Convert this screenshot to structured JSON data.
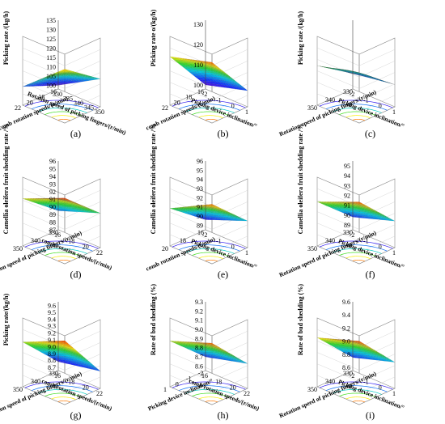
{
  "figure": {
    "panels": [
      {
        "caption": "(a)"
      },
      {
        "caption": "(b)"
      },
      {
        "caption": "(c)"
      },
      {
        "caption": "(d)"
      },
      {
        "caption": "(e)"
      },
      {
        "caption": "(f)"
      },
      {
        "caption": "(g)"
      },
      {
        "caption": "(h)"
      },
      {
        "caption": "(i)"
      }
    ]
  },
  "chart_data": [
    {
      "type": "surface3d",
      "caption": "(a)",
      "zlabel": "Picking rate /(kg/h)",
      "xlabel": "Rotation speed of picking fingers/(r/min)",
      "ylabel": "comb rotation speeds/(r/min)",
      "xticks": [
        "330",
        "335",
        "340",
        "345",
        "350"
      ],
      "yticks": [
        "16",
        "18",
        "20",
        "22"
      ],
      "zticks": [
        "100",
        "105",
        "110",
        "115",
        "120",
        "125",
        "130",
        "135"
      ],
      "zlim": [
        98,
        135
      ],
      "corners": {
        "z00": 100,
        "z10": 113,
        "z01": 108,
        "z11": 127
      },
      "colormap": "rainbow",
      "grid": true,
      "contour_base": true
    },
    {
      "type": "surface3d",
      "caption": "(b)",
      "zlabel": "Picking rate o/(kg/h)",
      "xlabel": "Picking device inclination/°",
      "ylabel": "comb rotation speeds/(r/min)",
      "xticks": [
        "-2",
        "-1",
        "0",
        "1"
      ],
      "yticks": [
        "16",
        "18",
        "20",
        "22"
      ],
      "zticks": [
        "100",
        "110",
        "120",
        "130"
      ],
      "zlim": [
        98,
        132
      ],
      "corners": {
        "z00": 100,
        "z10": 106,
        "z01": 122,
        "z11": 128
      },
      "colormap": "rainbow",
      "grid": true,
      "contour_base": true
    },
    {
      "type": "surface3d",
      "caption": "(c)",
      "zlabel": "Picking rate /(kg/h)",
      "xlabel": "Picking device inclination/°",
      "ylabel": "Rotation speed of picking fingers/(r/min)",
      "xticks": [
        "-2",
        "-1",
        "0",
        "1"
      ],
      "yticks": [
        "330",
        "340",
        "350"
      ],
      "zticks": [],
      "zlim": [
        95,
        135
      ],
      "corners": {
        "z00": 104,
        "z10": 108,
        "z01": 118,
        "z11": 123
      },
      "colormap": "rainbow",
      "grid": true,
      "contour_base": true
    },
    {
      "type": "surface3d",
      "caption": "(d)",
      "zlabel": "Camellia oleifera fruit shedding rate /%",
      "xlabel": "comb rotation speeds/(r/min)",
      "ylabel": "Rotation speed of picking fingers/(r/min)",
      "xticks": [
        "16",
        "18",
        "20",
        "22"
      ],
      "yticks": [
        "330",
        "340",
        "350"
      ],
      "zticks": [
        "87",
        "88",
        "89",
        "90",
        "91",
        "92",
        "93",
        "94",
        "95",
        "96"
      ],
      "zlim": [
        87,
        96
      ],
      "corners": {
        "z00": 89.5,
        "z10": 91.5,
        "z01": 93.2,
        "z11": 95.6
      },
      "colormap": "rainbow",
      "grid": true,
      "contour_base": true
    },
    {
      "type": "surface3d",
      "caption": "(e)",
      "zlabel": "Camellia oleifera fruit shedding rate /%",
      "xlabel": "Picking device inclination/°",
      "ylabel": "comb rotation speeds/(r/min)",
      "xticks": [
        "-2",
        "-1",
        "0",
        "1"
      ],
      "yticks": [
        "16",
        "18",
        "20"
      ],
      "zticks": [
        "89",
        "90",
        "91",
        "92",
        "93",
        "94",
        "95",
        "96"
      ],
      "zlim": [
        88.5,
        96
      ],
      "corners": {
        "z00": 89.6,
        "z10": 91.4,
        "z01": 92.6,
        "z11": 95.0
      },
      "colormap": "rainbow",
      "grid": true,
      "contour_base": true
    },
    {
      "type": "surface3d",
      "caption": "(f)",
      "zlabel": "Camellia oleifera fruit shedding rate /%",
      "xlabel": "Picking device inclination/°",
      "ylabel": "Rotation speed of picking fingers/(r/min)",
      "xticks": [
        "-2",
        "-1",
        "0",
        "1"
      ],
      "yticks": [
        "330",
        "340",
        "350"
      ],
      "zticks": [
        "89",
        "90",
        "91",
        "92",
        "93",
        "94",
        "95"
      ],
      "zlim": [
        88.5,
        95.5
      ],
      "corners": {
        "z00": 89.8,
        "z10": 91.2,
        "z01": 93.0,
        "z11": 94.8
      },
      "colormap": "rainbow",
      "grid": true,
      "contour_base": true
    },
    {
      "type": "surface3d",
      "caption": "(g)",
      "zlabel": "Picking rate/(kg/h)",
      "xlabel": "comb rotation speeds/(r/min)",
      "ylabel": "Rotation speed of picking fingers/(r/min)",
      "xticks": [
        "16",
        "18",
        "20",
        "22"
      ],
      "yticks": [
        "330",
        "340",
        "350"
      ],
      "zticks": [
        "8.7",
        "8.8",
        "8.9",
        "9.0",
        "9.1",
        "9.2",
        "9.3",
        "9.4",
        "9.5",
        "9.6"
      ],
      "zlim": [
        8.65,
        9.65
      ],
      "corners": {
        "z00": 8.78,
        "z10": 8.9,
        "z01": 9.3,
        "z11": 9.58
      },
      "colormap": "rainbow",
      "grid": true,
      "contour_base": true
    },
    {
      "type": "surface3d",
      "caption": "(h)",
      "zlabel": "Rate of bud shedding (%)",
      "xlabel": "comb rotation speeds/(r/min)",
      "ylabel": "Picking device inclination/°",
      "xticks": [
        "16",
        "18",
        "20",
        "22"
      ],
      "yticks": [
        "-2",
        "-1",
        "0",
        "1"
      ],
      "zticks": [
        "8.6",
        "8.7",
        "8.8",
        "8.9",
        "9.0",
        "9.1",
        "9.2",
        "9.3"
      ],
      "zlim": [
        8.55,
        9.3
      ],
      "corners": {
        "z00": 8.7,
        "z10": 8.82,
        "z01": 9.05,
        "z11": 9.22
      },
      "colormap": "rainbow",
      "grid": true,
      "contour_base": true
    },
    {
      "type": "surface3d",
      "caption": "(i)",
      "zlabel": "Rate of bud shedding (%)",
      "xlabel": "Picking device inclination/°",
      "ylabel": "Rotation speed of picking fingers/(r/min)",
      "xticks": [
        "-2",
        "-1",
        "0",
        "1"
      ],
      "yticks": [
        "330",
        "340",
        "350"
      ],
      "zticks": [
        "8.6",
        "8.8",
        "9.0",
        "9.2",
        "9.4",
        "9.6"
      ],
      "zlim": [
        8.55,
        9.6
      ],
      "corners": {
        "z00": 8.75,
        "z10": 8.95,
        "z01": 9.3,
        "z11": 9.52
      },
      "colormap": "rainbow",
      "grid": true,
      "contour_base": true
    }
  ]
}
